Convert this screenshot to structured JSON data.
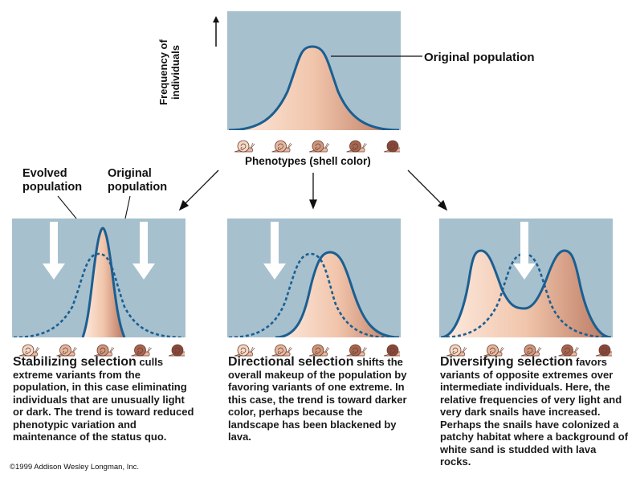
{
  "top": {
    "ylabel": "Frequency of individuals",
    "curve_label": "Original population",
    "xlabel": "Phenotypes (shell color)"
  },
  "left_labels": {
    "evolved": "Evolved population",
    "original": "Original population"
  },
  "panels": [
    {
      "title": "Stabilizing selection",
      "body": " culls extreme variants from the population, in this case eliminating individuals that are unusually light or dark. The trend is toward reduced phenotypic variation and maintenance of the status quo."
    },
    {
      "title": "Directional selection",
      "body": " shifts the overall makeup of the population by favoring variants of one extreme. In this case, the trend is toward darker color, perhaps because the landscape has been blackened by lava."
    },
    {
      "title": "Diversifying selection",
      "body": " favors variants of opposite extremes over intermediate individuals. Here, the relative frequencies of very light and very dark snails have increased. Perhaps the snails have colonized a patchy habitat where a background of white sand is studded with lava rocks."
    }
  ],
  "colors": {
    "panel_bg": "#a7c0ce",
    "curve": "#1b5f91",
    "fill_light": "#fbe0d0",
    "fill_dark": "#bf8066"
  },
  "snail_colors": [
    "#f3d9c6",
    "#e4b89e",
    "#cf987c",
    "#a76650",
    "#87483a"
  ],
  "copyright": "©1999 Addison Wesley Longman, Inc."
}
